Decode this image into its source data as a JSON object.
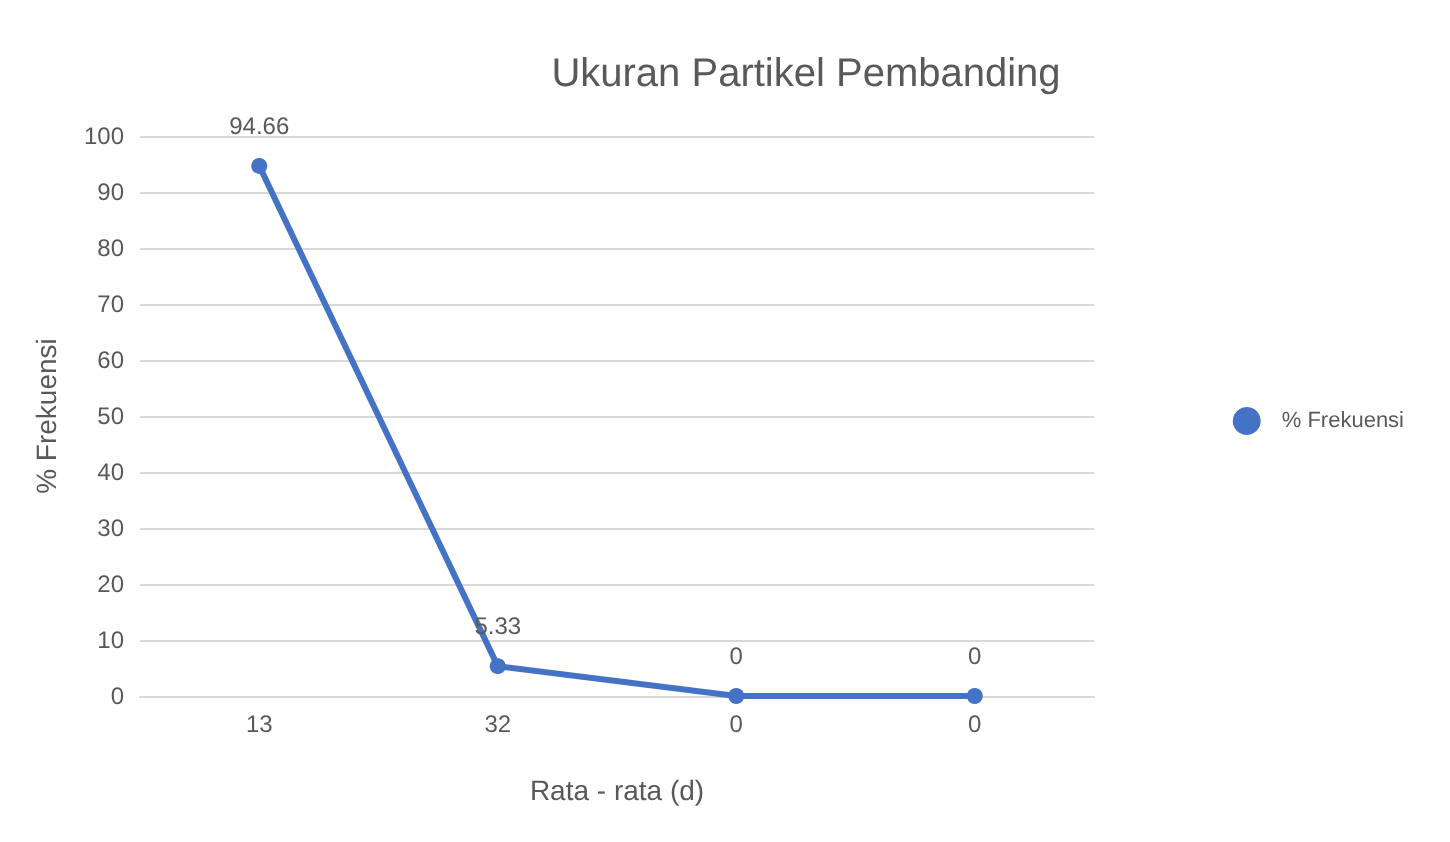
{
  "chart_data": {
    "type": "line",
    "title": "Ukuran Partikel Pembanding",
    "xlabel": "Rata - rata (d)",
    "ylabel": "% Frekuensi",
    "categories": [
      "13",
      "32",
      "0",
      "0"
    ],
    "series": [
      {
        "name": "% Frekuensi",
        "color": "#4472c4",
        "values": [
          94.66,
          5.33,
          0,
          0
        ]
      }
    ],
    "ylim": [
      0,
      100
    ],
    "yticks": [
      0,
      10,
      20,
      30,
      40,
      50,
      60,
      70,
      80,
      90,
      100
    ],
    "grid": "y",
    "legend": "right",
    "marker": "circle",
    "line_style": "solid",
    "data_labels": true
  }
}
